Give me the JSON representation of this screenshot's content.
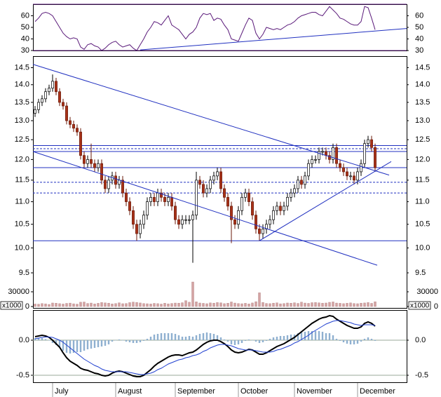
{
  "chart_data": [
    {
      "type": "line",
      "ylim": [
        30,
        70
      ],
      "yticks": [
        30,
        40,
        50,
        60
      ],
      "hlines": [
        {
          "value": 70,
          "color": "#602080"
        },
        {
          "value": 30,
          "color": "#602080"
        }
      ],
      "series": [
        {
          "color": "#5a1a7a",
          "values": [
            55,
            58,
            62,
            63,
            62,
            60,
            55,
            50,
            45,
            42,
            40,
            41,
            40,
            33,
            31,
            35,
            36,
            34,
            33,
            30,
            32,
            35,
            37,
            38,
            35,
            33,
            34,
            35,
            32,
            30,
            35,
            40,
            46,
            50,
            55,
            54,
            52,
            56,
            60,
            52,
            50,
            48,
            44,
            40,
            44,
            46,
            50,
            58,
            62,
            61,
            62,
            56,
            58,
            57,
            52,
            48,
            40,
            39,
            38,
            45,
            52,
            58,
            56,
            45,
            40,
            44,
            50,
            49,
            48,
            49,
            48,
            50,
            52,
            53,
            55,
            58,
            60,
            61,
            62,
            63,
            63,
            61,
            60,
            64,
            68,
            65,
            62,
            58,
            57,
            55,
            53,
            52,
            52,
            55,
            68,
            67,
            58,
            48
          ]
        }
      ],
      "trendlines": [
        {
          "color": "#2030c0",
          "points": [
            [
              30,
              30.5
            ],
            [
              106,
              49
            ]
          ]
        }
      ]
    },
    {
      "type": "candlestick",
      "log_scale": true,
      "ylim": [
        9.35,
        14.85
      ],
      "yticks": [
        9.5,
        {
          "value": 10,
          "label": "10.0"
        },
        10.5,
        {
          "value": 11,
          "label": "11.0"
        },
        11.5,
        {
          "value": 12,
          "label": "12.0"
        },
        12.5,
        {
          "value": 13,
          "label": "13.0"
        },
        13.5,
        {
          "value": 14,
          "label": "14.0"
        },
        14.5
      ],
      "up_color": "#ffffff",
      "down_color": "#a83218",
      "open": [
        13.2,
        13.3,
        13.5,
        13.6,
        13.8,
        13.9,
        14.1,
        13.8,
        13.5,
        13.4,
        13.0,
        12.9,
        12.8,
        12.7,
        12.1,
        11.9,
        12.0,
        11.9,
        11.8,
        11.9,
        11.5,
        11.3,
        11.5,
        11.6,
        11.4,
        11.5,
        11.2,
        11.0,
        10.8,
        10.5,
        10.3,
        10.5,
        10.7,
        11.0,
        11.1,
        11.0,
        11.2,
        11.1,
        11.0,
        11.1,
        10.9,
        10.6,
        10.5,
        10.6,
        10.6,
        10.6,
        10.7,
        11.5,
        11.4,
        11.2,
        11.3,
        11.5,
        11.6,
        11.7,
        11.3,
        11.1,
        10.9,
        10.6,
        10.5,
        10.8,
        11.1,
        11.2,
        11.0,
        10.7,
        10.4,
        10.3,
        10.4,
        10.5,
        10.6,
        10.8,
        10.9,
        10.8,
        10.9,
        11.1,
        11.2,
        11.3,
        11.5,
        11.4,
        11.6,
        11.9,
        12.0,
        12.0,
        12.2,
        12.2,
        12.1,
        12.0,
        12.3,
        11.9,
        11.8,
        11.7,
        11.6,
        11.6,
        11.5,
        11.7,
        11.9,
        12.4,
        12.5,
        12.3
      ],
      "high": [
        13.4,
        13.6,
        13.7,
        13.9,
        14.0,
        14.3,
        14.2,
        13.9,
        13.6,
        13.5,
        13.1,
        13.0,
        12.9,
        12.8,
        12.2,
        12.1,
        12.4,
        12.0,
        12.0,
        12.0,
        11.6,
        11.6,
        11.7,
        11.7,
        11.6,
        11.6,
        11.3,
        11.1,
        10.9,
        10.6,
        10.6,
        10.8,
        11.1,
        11.2,
        11.2,
        11.3,
        11.3,
        11.2,
        11.2,
        11.2,
        11.0,
        10.7,
        10.7,
        10.7,
        10.7,
        10.8,
        11.7,
        11.6,
        11.5,
        11.4,
        11.6,
        11.7,
        11.8,
        11.8,
        11.4,
        11.2,
        11.0,
        10.7,
        10.9,
        11.2,
        11.3,
        11.3,
        11.1,
        10.8,
        10.5,
        10.5,
        10.6,
        10.7,
        10.9,
        11.0,
        11.0,
        11.0,
        11.2,
        11.3,
        11.4,
        11.6,
        11.6,
        11.7,
        12.0,
        12.1,
        12.1,
        12.3,
        12.3,
        12.3,
        12.2,
        12.4,
        12.4,
        12.0,
        11.9,
        11.8,
        11.7,
        11.7,
        11.8,
        12.0,
        12.5,
        12.6,
        12.6,
        12.4
      ],
      "low": [
        13.1,
        13.2,
        13.4,
        13.5,
        13.7,
        13.8,
        13.7,
        13.4,
        13.3,
        12.9,
        12.8,
        12.7,
        12.6,
        12.0,
        11.8,
        11.8,
        11.8,
        11.7,
        11.7,
        11.4,
        11.2,
        11.2,
        11.4,
        11.3,
        11.3,
        11.1,
        10.9,
        10.7,
        10.4,
        10.15,
        10.2,
        10.4,
        10.6,
        10.9,
        10.9,
        10.9,
        11.0,
        10.9,
        10.9,
        10.8,
        10.5,
        10.4,
        10.4,
        10.5,
        10.5,
        9.7,
        10.6,
        11.3,
        11.1,
        11.1,
        11.2,
        11.4,
        11.5,
        11.2,
        11.0,
        10.8,
        10.1,
        10.4,
        10.4,
        10.7,
        11.0,
        10.9,
        10.6,
        10.3,
        10.15,
        10.2,
        10.3,
        10.4,
        10.5,
        10.7,
        10.7,
        10.7,
        10.8,
        11.0,
        11.1,
        11.2,
        11.3,
        11.3,
        11.5,
        11.8,
        11.9,
        11.9,
        12.1,
        12.0,
        11.9,
        11.9,
        11.8,
        11.7,
        11.6,
        11.5,
        11.5,
        11.4,
        11.4,
        11.6,
        11.8,
        12.3,
        12.2,
        11.7
      ],
      "close": [
        13.3,
        13.5,
        13.6,
        13.8,
        13.9,
        14.1,
        13.8,
        13.5,
        13.4,
        13.0,
        12.9,
        12.8,
        12.7,
        12.1,
        11.9,
        12.0,
        11.9,
        11.8,
        11.9,
        11.5,
        11.3,
        11.5,
        11.6,
        11.4,
        11.5,
        11.2,
        11.0,
        10.8,
        10.5,
        10.3,
        10.5,
        10.7,
        11.0,
        11.1,
        11.0,
        11.2,
        11.1,
        11.0,
        11.1,
        10.9,
        10.6,
        10.5,
        10.6,
        10.6,
        10.6,
        10.7,
        11.5,
        11.4,
        11.2,
        11.3,
        11.5,
        11.6,
        11.7,
        11.3,
        11.1,
        10.9,
        10.6,
        10.5,
        10.8,
        11.1,
        11.2,
        11.0,
        10.7,
        10.4,
        10.3,
        10.4,
        10.5,
        10.6,
        10.8,
        10.9,
        10.8,
        10.9,
        11.1,
        11.2,
        11.3,
        11.5,
        11.4,
        11.6,
        11.9,
        12.0,
        12.0,
        12.2,
        12.2,
        12.1,
        12.0,
        12.3,
        11.9,
        11.8,
        11.7,
        11.6,
        11.6,
        11.5,
        11.7,
        11.9,
        12.4,
        12.5,
        12.3,
        11.8
      ],
      "hlines": [
        {
          "value": 12.35,
          "color": "#2030c0"
        },
        {
          "value": 12.27,
          "color": "#2030c0",
          "dashed": true
        },
        {
          "value": 12.2,
          "color": "#2030c0"
        },
        {
          "value": 11.8,
          "color": "#2030c0"
        },
        {
          "value": 11.45,
          "color": "#2030c0",
          "dashed": true
        },
        {
          "value": 11.2,
          "color": "#2030c0",
          "dashed": true
        },
        {
          "value": 10.15,
          "color": "#2030c0"
        }
      ],
      "trendlines": [
        {
          "color": "#2030c0",
          "points": [
            [
              -0.6,
              14.6
            ],
            [
              101,
              11.62
            ]
          ]
        },
        {
          "color": "#2030c0",
          "points": [
            [
              -0.6,
              12.2
            ],
            [
              97.6,
              9.65
            ]
          ]
        },
        {
          "color": "#2030c0",
          "points": [
            [
              64,
              10.15
            ],
            [
              101.6,
              11.95
            ]
          ]
        }
      ]
    },
    {
      "type": "bar",
      "ylim": [
        0,
        60000
      ],
      "yticks": [
        0,
        30000
      ],
      "unit_label": "x1000",
      "color": "#d4a4a4",
      "values": [
        5200,
        4800,
        6100,
        5500,
        4300,
        7200,
        6800,
        5900,
        5100,
        6400,
        7000,
        5600,
        4900,
        8800,
        9200,
        6300,
        7100,
        5400,
        6600,
        8200,
        7400,
        6900,
        5300,
        6000,
        7600,
        5800,
        6200,
        8000,
        9100,
        8400,
        7300,
        6100,
        5700,
        5200,
        6400,
        5900,
        5000,
        6700,
        5500,
        6300,
        7100,
        6900,
        7800,
        12000,
        8800,
        50000,
        9600,
        7200,
        6500,
        5800,
        7400,
        6900,
        8100,
        7600,
        5900,
        6800,
        9300,
        7100,
        6200,
        5700,
        6600,
        5400,
        7300,
        9900,
        28000,
        8400,
        6300,
        5900,
        6900,
        7500,
        5600,
        6100,
        7200,
        6800,
        7700,
        6400,
        8900,
        7100,
        6500,
        7900,
        8300,
        7600,
        6900,
        7200,
        8600,
        9400,
        7100,
        6600,
        5900,
        6700,
        7400,
        6200,
        5800,
        6900,
        7300,
        8100,
        6500,
        9800
      ]
    },
    {
      "type": "macd",
      "ylim": [
        -0.6,
        0.43
      ],
      "yticks": [
        {
          "value": 0,
          "label": "0.0"
        },
        -0.5
      ],
      "grid": true,
      "categories": [
        null,
        null,
        null,
        null,
        null,
        "July",
        null,
        null,
        null,
        null,
        null,
        null,
        null,
        null,
        null,
        null,
        null,
        null,
        null,
        null,
        null,
        null,
        null,
        "August",
        null,
        null,
        null,
        null,
        null,
        null,
        null,
        null,
        null,
        null,
        null,
        null,
        null,
        null,
        null,
        null,
        "September",
        null,
        null,
        null,
        null,
        null,
        null,
        null,
        null,
        null,
        null,
        null,
        null,
        null,
        null,
        null,
        null,
        null,
        "October",
        null,
        null,
        null,
        null,
        null,
        null,
        null,
        null,
        null,
        null,
        null,
        null,
        null,
        null,
        null,
        "November",
        null,
        null,
        null,
        null,
        null,
        null,
        null,
        null,
        null,
        null,
        null,
        null,
        null,
        null,
        null,
        null,
        null,
        "December",
        null,
        null,
        null,
        null,
        null
      ],
      "histogram": {
        "color": "#8fb0d0",
        "values": [
          0.03,
          0.03,
          0.03,
          0.015,
          -0.005,
          -0.04,
          -0.07,
          -0.1,
          -0.15,
          -0.18,
          -0.19,
          -0.18,
          -0.17,
          -0.17,
          -0.15,
          -0.13,
          -0.12,
          -0.11,
          -0.1,
          -0.09,
          -0.08,
          -0.06,
          -0.02,
          0,
          0.01,
          0,
          -0.02,
          -0.03,
          -0.04,
          -0.04,
          -0.03,
          -0.01,
          0.02,
          0.05,
          0.08,
          0.09,
          0.1,
          0.1,
          0.1,
          0.1,
          0.09,
          0.07,
          0.05,
          0.05,
          0.06,
          0.05,
          0.07,
          0.09,
          0.1,
          0.11,
          0.1,
          0.09,
          0.07,
          0.04,
          0.01,
          -0.02,
          -0.06,
          -0.07,
          -0.06,
          -0.04,
          -0.01,
          0.01,
          0,
          -0.02,
          -0.04,
          -0.03,
          -0.01,
          0.02,
          0.04,
          0.05,
          0.06,
          0.06,
          0.07,
          0.08,
          0.08,
          0.1,
          0.11,
          0.12,
          0.13,
          0.13,
          0.13,
          0.13,
          0.12,
          0.1,
          0.1,
          0.07,
          0.02,
          -0.01,
          -0.03,
          -0.05,
          -0.06,
          -0.06,
          -0.05,
          -0.02,
          0.02,
          0.04,
          0.02,
          -0.01
        ]
      },
      "series": [
        {
          "color": "#000000",
          "values": [
            0.05,
            0.06,
            0.07,
            0.06,
            0.04,
            0,
            -0.05,
            -0.1,
            -0.18,
            -0.25,
            -0.3,
            -0.33,
            -0.36,
            -0.4,
            -0.42,
            -0.43,
            -0.45,
            -0.47,
            -0.48,
            -0.5,
            -0.51,
            -0.5,
            -0.47,
            -0.45,
            -0.44,
            -0.45,
            -0.47,
            -0.49,
            -0.51,
            -0.52,
            -0.52,
            -0.5,
            -0.46,
            -0.42,
            -0.37,
            -0.33,
            -0.3,
            -0.27,
            -0.24,
            -0.22,
            -0.21,
            -0.21,
            -0.22,
            -0.2,
            -0.18,
            -0.17,
            -0.14,
            -0.1,
            -0.06,
            -0.03,
            -0.01,
            0,
            0,
            -0.02,
            -0.05,
            -0.09,
            -0.14,
            -0.17,
            -0.18,
            -0.17,
            -0.15,
            -0.13,
            -0.14,
            -0.17,
            -0.2,
            -0.2,
            -0.18,
            -0.15,
            -0.12,
            -0.09,
            -0.07,
            -0.05,
            -0.02,
            0.01,
            0.04,
            0.08,
            0.12,
            0.16,
            0.2,
            0.24,
            0.27,
            0.3,
            0.32,
            0.33,
            0.35,
            0.34,
            0.3,
            0.27,
            0.24,
            0.21,
            0.19,
            0.17,
            0.17,
            0.19,
            0.24,
            0.26,
            0.24,
            0.2
          ]
        },
        {
          "color": "#2040d0",
          "values": [
            0.02,
            0.03,
            0.04,
            0.045,
            0.045,
            0.04,
            0.02,
            0,
            -0.03,
            -0.07,
            -0.11,
            -0.15,
            -0.19,
            -0.23,
            -0.27,
            -0.3,
            -0.33,
            -0.36,
            -0.38,
            -0.41,
            -0.43,
            -0.44,
            -0.45,
            -0.45,
            -0.45,
            -0.45,
            -0.45,
            -0.46,
            -0.47,
            -0.48,
            -0.49,
            -0.49,
            -0.48,
            -0.47,
            -0.45,
            -0.42,
            -0.4,
            -0.37,
            -0.34,
            -0.32,
            -0.3,
            -0.28,
            -0.27,
            -0.25,
            -0.24,
            -0.22,
            -0.21,
            -0.19,
            -0.16,
            -0.14,
            -0.11,
            -0.09,
            -0.07,
            -0.06,
            -0.06,
            -0.07,
            -0.08,
            -0.1,
            -0.12,
            -0.13,
            -0.14,
            -0.14,
            -0.14,
            -0.15,
            -0.16,
            -0.17,
            -0.17,
            -0.17,
            -0.16,
            -0.14,
            -0.13,
            -0.11,
            -0.09,
            -0.07,
            -0.04,
            -0.02,
            0.01,
            0.04,
            0.07,
            0.11,
            0.14,
            0.17,
            0.2,
            0.23,
            0.25,
            0.27,
            0.28,
            0.28,
            0.27,
            0.26,
            0.25,
            0.23,
            0.22,
            0.21,
            0.22,
            0.22,
            0.22,
            0.21
          ]
        }
      ]
    }
  ]
}
